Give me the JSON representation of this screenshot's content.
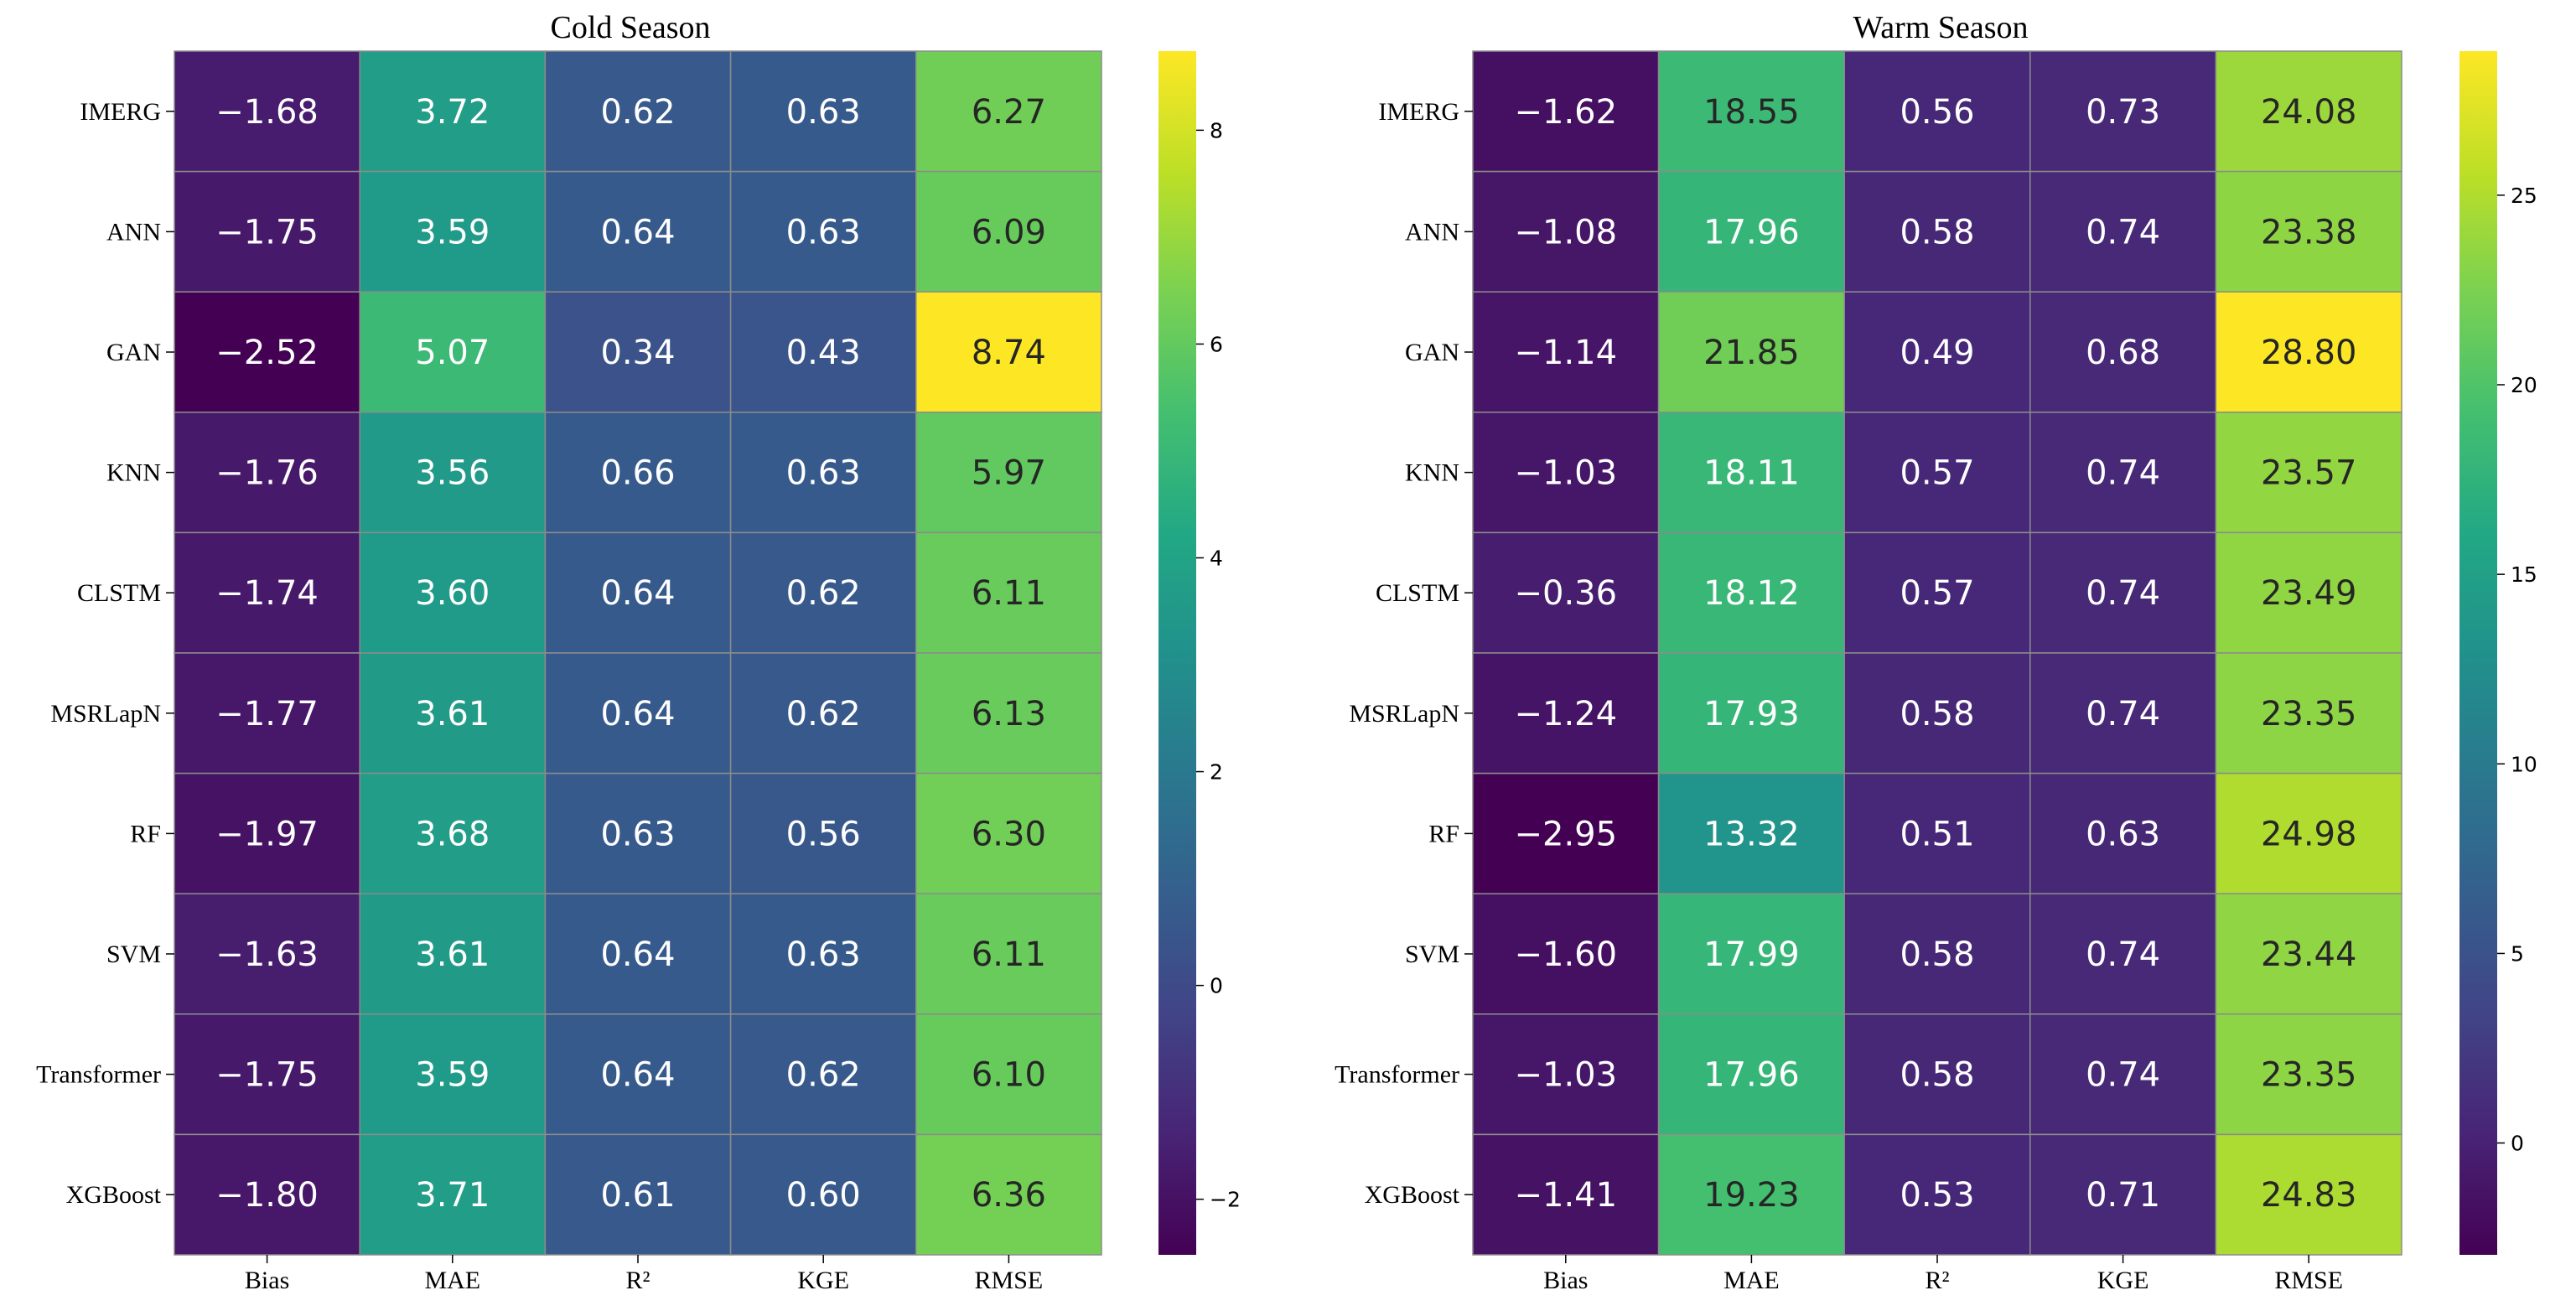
{
  "chart_data": [
    {
      "type": "heatmap",
      "title": "Cold Season",
      "rows": [
        "IMERG",
        "ANN",
        "GAN",
        "KNN",
        "CLSTM",
        "MSRLapN",
        "RF",
        "SVM",
        "Transformer",
        "XGBoost"
      ],
      "columns": [
        "Bias",
        "MAE",
        "R²",
        "KGE",
        "RMSE"
      ],
      "values": [
        [
          -1.68,
          3.72,
          0.62,
          0.63,
          6.27
        ],
        [
          -1.75,
          3.59,
          0.64,
          0.63,
          6.09
        ],
        [
          -2.52,
          5.07,
          0.34,
          0.43,
          8.74
        ],
        [
          -1.76,
          3.56,
          0.66,
          0.63,
          5.97
        ],
        [
          -1.74,
          3.6,
          0.64,
          0.62,
          6.11
        ],
        [
          -1.77,
          3.61,
          0.64,
          0.62,
          6.13
        ],
        [
          -1.97,
          3.68,
          0.63,
          0.56,
          6.3
        ],
        [
          -1.63,
          3.61,
          0.64,
          0.63,
          6.11
        ],
        [
          -1.75,
          3.59,
          0.64,
          0.62,
          6.1
        ],
        [
          -1.8,
          3.71,
          0.61,
          0.6,
          6.36
        ]
      ],
      "labels": [
        [
          "−1.68",
          "3.72",
          "0.62",
          "0.63",
          "6.27"
        ],
        [
          "−1.75",
          "3.59",
          "0.64",
          "0.63",
          "6.09"
        ],
        [
          "−2.52",
          "5.07",
          "0.34",
          "0.43",
          "8.74"
        ],
        [
          "−1.76",
          "3.56",
          "0.66",
          "0.63",
          "5.97"
        ],
        [
          "−1.74",
          "3.60",
          "0.64",
          "0.62",
          "6.11"
        ],
        [
          "−1.77",
          "3.61",
          "0.64",
          "0.62",
          "6.13"
        ],
        [
          "−1.97",
          "3.68",
          "0.63",
          "0.56",
          "6.30"
        ],
        [
          "−1.63",
          "3.61",
          "0.64",
          "0.63",
          "6.11"
        ],
        [
          "−1.75",
          "3.59",
          "0.64",
          "0.62",
          "6.10"
        ],
        [
          "−1.80",
          "3.71",
          "0.61",
          "0.60",
          "6.36"
        ]
      ],
      "colorbar": {
        "colormap": "viridis",
        "vmin": -2.52,
        "vmax": 8.74,
        "ticks": [
          -2,
          0,
          2,
          4,
          6,
          8
        ],
        "tick_labels": [
          "−2",
          "0",
          "2",
          "4",
          "6",
          "8"
        ]
      }
    },
    {
      "type": "heatmap",
      "title": "Warm Season",
      "rows": [
        "IMERG",
        "ANN",
        "GAN",
        "KNN",
        "CLSTM",
        "MSRLapN",
        "RF",
        "SVM",
        "Transformer",
        "XGBoost"
      ],
      "columns": [
        "Bias",
        "MAE",
        "R²",
        "KGE",
        "RMSE"
      ],
      "values": [
        [
          -1.62,
          18.55,
          0.56,
          0.73,
          24.08
        ],
        [
          -1.08,
          17.96,
          0.58,
          0.74,
          23.38
        ],
        [
          -1.14,
          21.85,
          0.49,
          0.68,
          28.8
        ],
        [
          -1.03,
          18.11,
          0.57,
          0.74,
          23.57
        ],
        [
          -0.36,
          18.12,
          0.57,
          0.74,
          23.49
        ],
        [
          -1.24,
          17.93,
          0.58,
          0.74,
          23.35
        ],
        [
          -2.95,
          13.32,
          0.51,
          0.63,
          24.98
        ],
        [
          -1.6,
          17.99,
          0.58,
          0.74,
          23.44
        ],
        [
          -1.03,
          17.96,
          0.58,
          0.74,
          23.35
        ],
        [
          -1.41,
          19.23,
          0.53,
          0.71,
          24.83
        ]
      ],
      "labels": [
        [
          "−1.62",
          "18.55",
          "0.56",
          "0.73",
          "24.08"
        ],
        [
          "−1.08",
          "17.96",
          "0.58",
          "0.74",
          "23.38"
        ],
        [
          "−1.14",
          "21.85",
          "0.49",
          "0.68",
          "28.80"
        ],
        [
          "−1.03",
          "18.11",
          "0.57",
          "0.74",
          "23.57"
        ],
        [
          "−0.36",
          "18.12",
          "0.57",
          "0.74",
          "23.49"
        ],
        [
          "−1.24",
          "17.93",
          "0.58",
          "0.74",
          "23.35"
        ],
        [
          "−2.95",
          "13.32",
          "0.51",
          "0.63",
          "24.98"
        ],
        [
          "−1.60",
          "17.99",
          "0.58",
          "0.74",
          "23.44"
        ],
        [
          "−1.03",
          "17.96",
          "0.58",
          "0.74",
          "23.35"
        ],
        [
          "−1.41",
          "19.23",
          "0.53",
          "0.71",
          "24.83"
        ]
      ],
      "colorbar": {
        "colormap": "viridis",
        "vmin": -2.95,
        "vmax": 28.8,
        "ticks": [
          0,
          5,
          10,
          15,
          20,
          25
        ],
        "tick_labels": [
          "0",
          "5",
          "10",
          "15",
          "20",
          "25"
        ]
      }
    }
  ]
}
